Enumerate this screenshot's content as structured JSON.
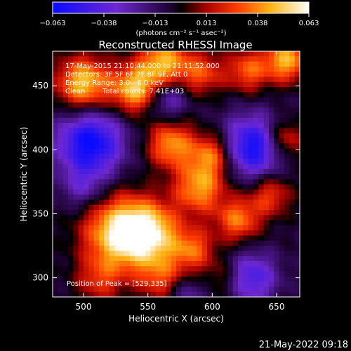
{
  "chart_data": {
    "type": "heatmap",
    "title": "Reconstructed RHESSI Image",
    "xlabel": "Heliocentric X (arcsec)",
    "ylabel": "Heliocentric Y (arcsec)",
    "xlim": [
      476,
      668
    ],
    "ylim": [
      285,
      477
    ],
    "x_ticks": [
      500,
      550,
      600,
      650
    ],
    "y_ticks": [
      300,
      350,
      400,
      450
    ],
    "colorbar": {
      "min": -0.063,
      "max": 0.063,
      "tick_labels": [
        "-0.063",
        "-0.038",
        "-0.013",
        "0.013",
        "0.038",
        "0.063"
      ],
      "unit_label": "(photons cm⁻² s⁻¹ asec⁻²)"
    },
    "annotations": [
      "17-May-2015 21:10:44.000 to 21:11:52.000",
      "Detectors: 3F 5F 6F 7F 8F 9F, Att 0",
      "Energy Range: 3.0 - 6.0 keV",
      "Clean",
      "Total counts: 7.41E+03",
      "Position of Peak = [529,335]"
    ],
    "peak": {
      "x": 529,
      "y": 335
    },
    "sources": [
      {
        "x": 529,
        "y": 335,
        "value": 0.063,
        "sigma": 20
      },
      {
        "x": 552,
        "y": 335,
        "value": 0.048,
        "sigma": 16
      },
      {
        "x": 500,
        "y": 452,
        "value": 0.055,
        "sigma": 15
      },
      {
        "x": 540,
        "y": 447,
        "value": 0.052,
        "sigma": 13
      },
      {
        "x": 562,
        "y": 468,
        "value": 0.05,
        "sigma": 14
      },
      {
        "x": 592,
        "y": 460,
        "value": 0.032,
        "sigma": 12
      },
      {
        "x": 628,
        "y": 462,
        "value": 0.036,
        "sigma": 12
      },
      {
        "x": 658,
        "y": 470,
        "value": 0.05,
        "sigma": 12
      },
      {
        "x": 568,
        "y": 404,
        "value": 0.045,
        "sigma": 13
      },
      {
        "x": 600,
        "y": 396,
        "value": 0.04,
        "sigma": 12
      },
      {
        "x": 590,
        "y": 370,
        "value": 0.046,
        "sigma": 14
      },
      {
        "x": 620,
        "y": 345,
        "value": 0.04,
        "sigma": 12
      },
      {
        "x": 645,
        "y": 365,
        "value": 0.032,
        "sigma": 12
      },
      {
        "x": 656,
        "y": 408,
        "value": 0.036,
        "sigma": 11
      },
      {
        "x": 585,
        "y": 322,
        "value": 0.036,
        "sigma": 12
      },
      {
        "x": 560,
        "y": 300,
        "value": 0.03,
        "sigma": 13
      },
      {
        "x": 512,
        "y": 298,
        "value": 0.025,
        "sigma": 13
      },
      {
        "x": 610,
        "y": 300,
        "value": 0.018,
        "sigma": 11
      },
      {
        "x": 505,
        "y": 405,
        "value": -0.058,
        "sigma": 18
      },
      {
        "x": 632,
        "y": 402,
        "value": -0.056,
        "sigma": 17
      },
      {
        "x": 565,
        "y": 440,
        "value": -0.03,
        "sigma": 11
      },
      {
        "x": 630,
        "y": 300,
        "value": -0.04,
        "sigma": 14
      },
      {
        "x": 500,
        "y": 370,
        "value": -0.02,
        "sigma": 12
      },
      {
        "x": 580,
        "y": 287,
        "value": -0.02,
        "sigma": 10
      }
    ]
  },
  "footer": {
    "timestamp": "21-May-2022 09:18"
  }
}
